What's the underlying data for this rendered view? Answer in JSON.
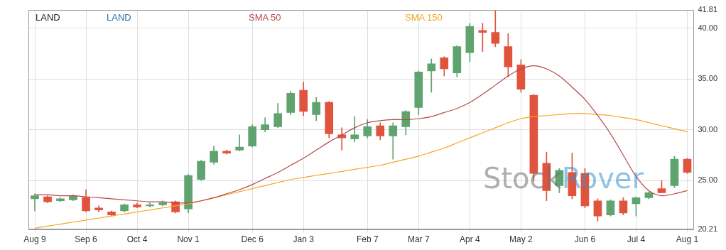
{
  "chart_data": {
    "type": "candlestick",
    "title": "LAND",
    "legend": "top",
    "grid": true,
    "annotations": [
      {
        "text": "Stock",
        "color": "#6d6d6d"
      },
      {
        "text": "Rover",
        "color": "#3a92cf"
      }
    ],
    "categories": [
      "Aug 9",
      null,
      null,
      null,
      "Sep 6",
      null,
      null,
      null,
      "Oct 4",
      null,
      null,
      null,
      "Nov 1",
      null,
      null,
      null,
      null,
      "Dec 6",
      null,
      null,
      null,
      "Jan 3",
      null,
      null,
      null,
      null,
      "Feb 7",
      null,
      null,
      null,
      "Mar 7",
      null,
      null,
      null,
      "Apr 4",
      null,
      null,
      null,
      "May 2",
      null,
      null,
      null,
      null,
      "Jun 6",
      null,
      null,
      null,
      "Jul 4",
      null,
      null,
      null,
      "Aug 1"
    ],
    "ylim": [
      20.21,
      41.81
    ],
    "yticks": [
      20.21,
      {
        "value": 25,
        "label": "25.00"
      },
      {
        "value": 30,
        "label": "30.00"
      },
      {
        "value": 35,
        "label": "35.00"
      },
      {
        "value": 40,
        "label": "40.00"
      },
      41.81
    ],
    "series": [
      {
        "name": "LAND",
        "type": "candlestick",
        "color": "#2e6da4",
        "open": [
          23.2,
          23.4,
          23.0,
          23.1,
          23.3,
          22.3,
          21.9,
          22.0,
          22.6,
          22.5,
          22.6,
          22.9,
          22.2,
          25.1,
          26.8,
          27.9,
          28.0,
          28.4,
          30.0,
          30.3,
          31.7,
          33.9,
          31.5,
          32.7,
          29.5,
          29.1,
          29.4,
          30.4,
          29.4,
          30.3,
          32.2,
          35.8,
          37.1,
          35.6,
          37.6,
          39.8,
          39.6,
          38.2,
          36.4,
          33.4,
          26.7,
          24.5,
          25.8,
          25.7,
          23.0,
          21.6,
          23.0,
          22.7,
          23.3,
          24.2,
          24.5,
          27.1
        ],
        "high": [
          23.7,
          23.5,
          23.3,
          23.6,
          24.1,
          22.5,
          22.0,
          22.7,
          22.8,
          22.8,
          23.0,
          23.0,
          25.6,
          27.0,
          28.4,
          28.0,
          29.5,
          30.5,
          31.2,
          32.6,
          33.8,
          34.7,
          33.2,
          32.8,
          30.2,
          31.3,
          31.0,
          30.7,
          30.7,
          31.9,
          35.8,
          37.0,
          37.2,
          38.3,
          40.5,
          40.5,
          41.8,
          39.5,
          36.9,
          33.5,
          27.8,
          26.2,
          27.7,
          26.2,
          23.2,
          23.1,
          23.3,
          23.4,
          23.9,
          25.0,
          27.4,
          27.2
        ],
        "low": [
          22.0,
          22.8,
          22.9,
          23.0,
          21.9,
          21.9,
          21.5,
          21.9,
          22.3,
          22.4,
          22.5,
          21.8,
          21.8,
          25.0,
          26.6,
          27.6,
          27.9,
          28.3,
          29.8,
          30.2,
          31.5,
          31.4,
          30.9,
          29.2,
          28.0,
          28.8,
          29.2,
          29.0,
          27.1,
          29.5,
          31.5,
          33.7,
          35.3,
          35.2,
          36.7,
          37.7,
          38.2,
          35.2,
          33.7,
          25.0,
          23.0,
          23.8,
          23.2,
          22.3,
          21.0,
          21.5,
          21.6,
          21.5,
          23.2,
          23.8,
          24.3,
          25.7
        ],
        "close": [
          23.5,
          22.9,
          23.2,
          23.5,
          22.0,
          22.1,
          21.6,
          22.6,
          22.4,
          22.6,
          22.8,
          21.9,
          25.5,
          26.9,
          27.9,
          27.7,
          28.3,
          30.3,
          30.5,
          31.6,
          33.6,
          31.8,
          32.7,
          29.6,
          29.2,
          29.5,
          30.3,
          29.4,
          30.4,
          31.8,
          35.7,
          36.5,
          36.0,
          38.2,
          40.2,
          39.6,
          38.5,
          36.2,
          34.0,
          25.7,
          24.0,
          26.0,
          23.5,
          22.5,
          21.5,
          23.0,
          21.8,
          23.3,
          23.8,
          23.8,
          27.1,
          25.8
        ]
      },
      {
        "name": "SMA 50",
        "type": "line",
        "color": "#b5484a",
        "values": [
          23.6,
          23.6,
          23.5,
          23.5,
          23.4,
          23.3,
          23.2,
          23.1,
          23.0,
          22.9,
          22.9,
          22.8,
          22.8,
          23.0,
          23.3,
          23.7,
          24.1,
          24.6,
          25.2,
          25.8,
          26.5,
          27.2,
          28.0,
          28.8,
          29.5,
          30.2,
          30.7,
          30.9,
          31.0,
          31.0,
          31.1,
          31.3,
          31.7,
          32.1,
          32.7,
          33.5,
          34.4,
          35.3,
          36.0,
          36.3,
          36.0,
          35.3,
          34.2,
          33.0,
          31.4,
          29.6,
          27.5,
          25.4,
          24.0,
          23.5,
          23.7,
          24.0
        ]
      },
      {
        "name": "SMA 150",
        "type": "line",
        "color": "#f5a623",
        "values": [
          20.3,
          20.5,
          20.7,
          20.9,
          21.1,
          21.3,
          21.5,
          21.7,
          21.9,
          22.1,
          22.3,
          22.5,
          22.7,
          23.0,
          23.3,
          23.6,
          23.9,
          24.2,
          24.5,
          24.8,
          25.1,
          25.3,
          25.5,
          25.7,
          25.9,
          26.1,
          26.3,
          26.5,
          26.8,
          27.1,
          27.4,
          27.8,
          28.2,
          28.7,
          29.2,
          29.7,
          30.2,
          30.7,
          31.1,
          31.3,
          31.4,
          31.5,
          31.6,
          31.6,
          31.5,
          31.4,
          31.2,
          31.0,
          30.7,
          30.4,
          30.1,
          29.8
        ]
      }
    ]
  }
}
